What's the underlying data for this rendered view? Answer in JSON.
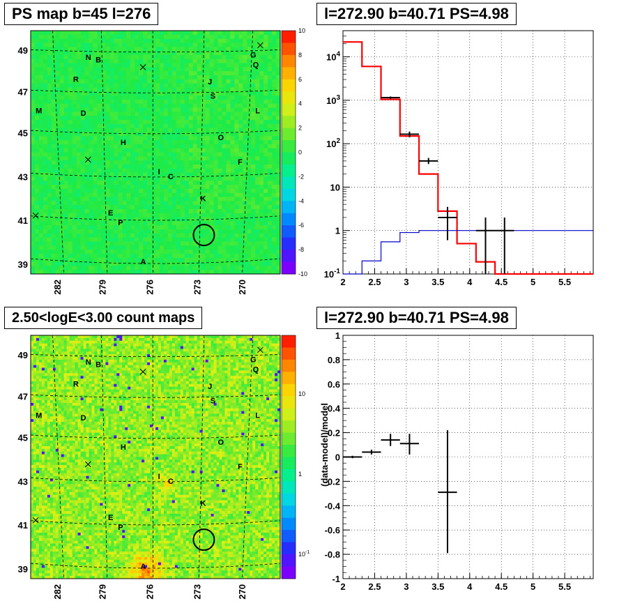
{
  "titles": {
    "top_left": "PS map b=45 l=276",
    "top_right": "l=272.90 b=40.71 PS=4.98",
    "bottom_left": "2.50<logE<3.00 count maps",
    "bottom_right": "l=272.90 b=40.71 PS=4.98"
  },
  "chart_data": [
    {
      "type": "heatmap",
      "title": "PS map b=45 l=276",
      "x_ticks": [
        "282",
        "279",
        "276",
        "273",
        "270"
      ],
      "y_ticks": [
        "39",
        "41",
        "43",
        "45",
        "47",
        "49"
      ],
      "colorbar": {
        "ticks": [
          "10",
          "8",
          "6",
          "4",
          "2",
          "0",
          "-2",
          "-4",
          "-6",
          "-8",
          "-10"
        ],
        "range": [
          -10,
          10
        ],
        "scale": "linear"
      },
      "source_labels": [
        "N",
        "B",
        "G",
        "Q",
        "R",
        "J",
        "S",
        "M",
        "D",
        "L",
        "H",
        "O",
        "F",
        "I",
        "C",
        "K",
        "E",
        "P",
        "A"
      ],
      "circle_marker": {
        "l": 272.9,
        "b": 40.71
      },
      "colors": {
        "background": "#22e85a"
      }
    },
    {
      "type": "line",
      "title": "l=272.90 b=40.71 PS=4.98",
      "xlim": [
        2.0,
        5.95
      ],
      "ylim": [
        0.1,
        40000
      ],
      "yscale": "log",
      "x_ticks": [
        "2",
        "2.5",
        "3",
        "3.5",
        "4",
        "4.5",
        "5",
        "5.5"
      ],
      "y_ticks": [
        "10^-1",
        "1",
        "10",
        "10^2",
        "10^3",
        "10^4"
      ],
      "grid": true,
      "series": [
        {
          "style": "step",
          "color": "#ff0000",
          "edges": [
            2.0,
            2.3,
            2.6,
            2.9,
            3.2,
            3.5,
            3.8,
            4.1,
            4.4,
            4.7,
            5.0,
            5.3,
            5.95
          ],
          "values": [
            22000,
            6000,
            1050,
            150,
            20,
            2.8,
            0.5,
            0.19,
            0.1,
            0.1,
            0.1,
            0.1
          ]
        },
        {
          "style": "step",
          "color": "#0000cc",
          "edges": [
            2.0,
            2.3,
            2.6,
            2.9,
            3.2,
            3.5,
            3.8,
            4.1,
            4.4,
            4.7,
            5.0,
            5.3,
            5.95
          ],
          "values": [
            0.1,
            0.2,
            0.55,
            0.9,
            1.0,
            1.0,
            1.0,
            1.0,
            1.0,
            1.0,
            1.0,
            1.0
          ]
        },
        {
          "style": "errorbar",
          "color": "#000000",
          "points": [
            {
              "x": 2.75,
              "xerr": 0.15,
              "y": 1150,
              "ylo": 1080,
              "yhi": 1220
            },
            {
              "x": 3.05,
              "xerr": 0.15,
              "y": 165,
              "ylo": 140,
              "yhi": 190
            },
            {
              "x": 3.35,
              "xerr": 0.15,
              "y": 40,
              "ylo": 34,
              "yhi": 47
            },
            {
              "x": 3.65,
              "xerr": 0.15,
              "y": 2.0,
              "ylo": 0.6,
              "yhi": 3.5
            },
            {
              "x": 4.25,
              "xerr": 0.15,
              "y": 1.0,
              "ylo": 0.1,
              "yhi": 2.0
            },
            {
              "x": 4.55,
              "xerr": 0.15,
              "y": 1.0,
              "ylo": 0.1,
              "yhi": 2.0
            }
          ]
        }
      ]
    },
    {
      "type": "heatmap",
      "title": "2.50<logE<3.00 count maps",
      "x_ticks": [
        "282",
        "279",
        "276",
        "273",
        "270"
      ],
      "y_ticks": [
        "39",
        "41",
        "43",
        "45",
        "47",
        "49"
      ],
      "colorbar": {
        "ticks": [
          "10",
          "1",
          "10^-1"
        ],
        "scale": "log"
      },
      "source_labels": [
        "N",
        "B",
        "G",
        "Q",
        "R",
        "J",
        "S",
        "M",
        "D",
        "L",
        "H",
        "O",
        "F",
        "I",
        "C",
        "K",
        "E",
        "P",
        "A"
      ],
      "circle_marker": {
        "l": 272.9,
        "b": 40.71
      },
      "colors": {
        "background": "#a8e834"
      }
    },
    {
      "type": "scatter",
      "title": "l=272.90 b=40.71 PS=4.98",
      "ylabel": "(data-model)/model",
      "xlim": [
        2.0,
        5.95
      ],
      "ylim": [
        -1.0,
        1.0
      ],
      "x_ticks": [
        "2",
        "2.5",
        "3",
        "3.5",
        "4",
        "4.5",
        "5",
        "5.5"
      ],
      "y_ticks": [
        "-1",
        "-0.8",
        "-0.6",
        "-0.4",
        "-0.2",
        "0",
        "0.2",
        "0.4",
        "0.6",
        "0.8",
        "1"
      ],
      "grid": true,
      "points": [
        {
          "x": 2.15,
          "xerr": 0.15,
          "y": 0.0,
          "ylo": -0.01,
          "yhi": 0.01
        },
        {
          "x": 2.45,
          "xerr": 0.15,
          "y": 0.04,
          "ylo": 0.02,
          "yhi": 0.06
        },
        {
          "x": 2.75,
          "xerr": 0.15,
          "y": 0.14,
          "ylo": 0.09,
          "yhi": 0.19
        },
        {
          "x": 3.05,
          "xerr": 0.15,
          "y": 0.11,
          "ylo": 0.02,
          "yhi": 0.19
        },
        {
          "x": 3.65,
          "xerr": 0.15,
          "y": -0.29,
          "ylo": -0.79,
          "yhi": 0.22
        }
      ]
    }
  ]
}
